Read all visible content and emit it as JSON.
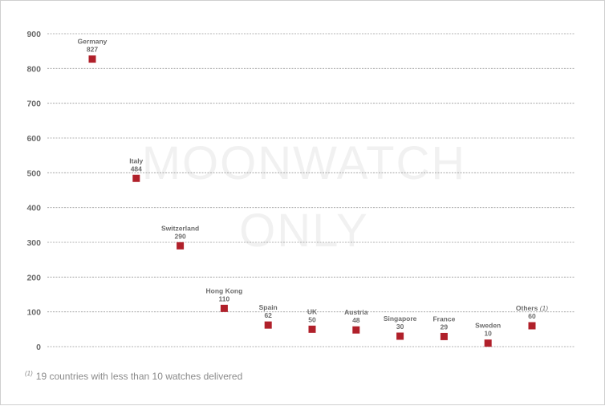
{
  "chart_data": {
    "type": "scatter",
    "categories": [
      "Germany",
      "Italy",
      "Switzerland",
      "Hong Kong",
      "Spain",
      "UK",
      "Austria",
      "Singapore",
      "France",
      "Sweden",
      "Others"
    ],
    "values": [
      827,
      484,
      290,
      110,
      62,
      50,
      48,
      30,
      29,
      10,
      60
    ],
    "value_labels": [
      "827",
      "484",
      "290",
      "110",
      "62",
      "50",
      "48",
      "30",
      "29",
      "10",
      "60"
    ],
    "ylim": [
      0,
      900
    ],
    "yticks": [
      "0",
      "100",
      "200",
      "300",
      "400",
      "500",
      "600",
      "700",
      "800",
      "900"
    ],
    "grid": true,
    "marker_color": "#b0202a",
    "grid_color": "#9a9a9a",
    "others_note": "(1)",
    "watermark": [
      "MOONWATCH",
      "ONLY"
    ]
  },
  "footnote": {
    "marker": "(1)",
    "text": "19 countries with less than 10 watches delivered"
  }
}
